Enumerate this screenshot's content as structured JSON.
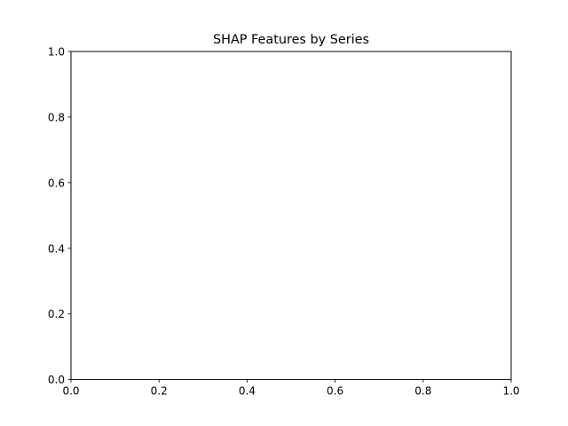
{
  "chart_data": {
    "type": "scatter",
    "title": "SHAP Features by Series",
    "xlabel": "",
    "ylabel": "",
    "xlim": [
      0.0,
      1.0
    ],
    "ylim": [
      0.0,
      1.0
    ],
    "xticks": [
      0.0,
      0.2,
      0.4,
      0.6,
      0.8,
      1.0
    ],
    "yticks": [
      0.0,
      0.2,
      0.4,
      0.6,
      0.8,
      1.0
    ],
    "xtick_labels": [
      "0.0",
      "0.2",
      "0.4",
      "0.6",
      "0.8",
      "1.0"
    ],
    "ytick_labels": [
      "0.0",
      "0.2",
      "0.4",
      "0.6",
      "0.8",
      "1.0"
    ],
    "series": [],
    "grid": false,
    "legend": false
  }
}
